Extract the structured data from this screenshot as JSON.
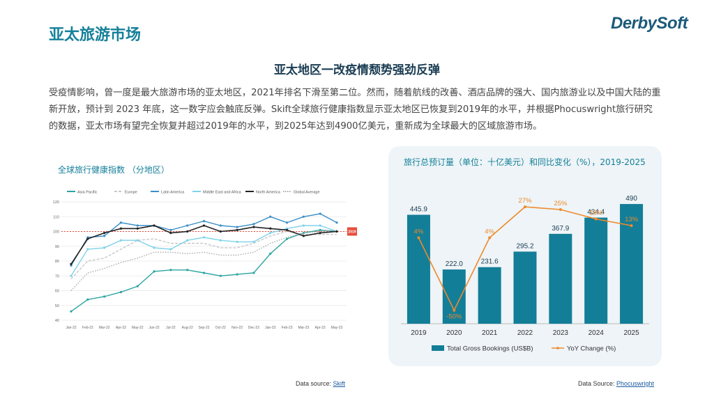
{
  "header": {
    "title": "亚太旅游市场",
    "logo_text": "DerbySoft",
    "brand_color": "#15809a"
  },
  "subtitle": "亚太地区一改疫情颓势强劲反弹",
  "body_text": "受疫情影响，曾一度是最大旅游市场的亚太地区，2021年排名下滑至第二位。然而，随着航线的改善、酒店品牌的强大、国内旅游业以及中国大陆的重新开放，预计到 2023 年底，这一数字应会触底反弹。Skift全球旅行健康指数显示亚太地区已恢复到2019年的水平，并根据Phocuswright旅行研究的数据，亚太市场有望完全恢复并超过2019年的水平，到2025年达到4900亿美元，重新成为全球最大的区域旅游市场。",
  "left_chart_title": "全球旅行健康指数 （分地区）",
  "right_chart_title": "旅行总预订量（单位：十亿美元）和同比变化（%），2019-2025",
  "sources": {
    "left_label": "Data source: ",
    "left_link": "Skift",
    "right_label": "Data Source: ",
    "right_link": "Phocuswright"
  },
  "chart_data": [
    {
      "type": "line",
      "title": "全球旅行健康指数 （分地区）",
      "x": [
        "Jan-22",
        "Feb-22",
        "Mar-22",
        "Apr-22",
        "May-22",
        "Jun-22",
        "Jul-22",
        "Aug-22",
        "Sep-22",
        "Oct-22",
        "Nov-22",
        "Dec-22",
        "Jan-23",
        "Feb-23",
        "Mar-23",
        "Apr-23",
        "May-23"
      ],
      "ylim": [
        40,
        120
      ],
      "yticks": [
        40,
        50,
        60,
        70,
        80,
        90,
        100,
        110,
        120
      ],
      "grid": true,
      "legend_position": "top",
      "reference_line": {
        "value": 100,
        "label": "2019",
        "color": "#e74c3c"
      },
      "series": [
        {
          "name": "Asia Pacific",
          "color": "#2aa5a0",
          "dash": "solid",
          "values": [
            46,
            54,
            56,
            59,
            63,
            73,
            74,
            74,
            72,
            70,
            71,
            72,
            85,
            95,
            99,
            101,
            100
          ]
        },
        {
          "name": "Europe",
          "color": "#c8c8c8",
          "dash": "dashed",
          "values": [
            68,
            80,
            82,
            88,
            94,
            95,
            92,
            92,
            92,
            89,
            89,
            92,
            97,
            100,
            98,
            98,
            98
          ]
        },
        {
          "name": "Latin America",
          "color": "#3a8fc7",
          "dash": "solid",
          "values": [
            77,
            96,
            97,
            106,
            104,
            104,
            101,
            104,
            107,
            104,
            103,
            105,
            110,
            106,
            110,
            112,
            106
          ]
        },
        {
          "name": "Middle East and Africa",
          "color": "#7fd3e8",
          "dash": "solid",
          "values": [
            70,
            88,
            89,
            94,
            94,
            89,
            88,
            94,
            96,
            94,
            93,
            93,
            99,
            102,
            104,
            104,
            100
          ]
        },
        {
          "name": "North America",
          "color": "#222222",
          "dash": "solid",
          "values": [
            78,
            95,
            99,
            102,
            102,
            104,
            99,
            100,
            104,
            100,
            101,
            103,
            102,
            101,
            97,
            99,
            100
          ]
        },
        {
          "name": "Global Average",
          "color": "#aaaaaa",
          "dash": "dotted",
          "values": [
            60,
            72,
            75,
            79,
            82,
            86,
            86,
            85,
            86,
            84,
            84,
            86,
            92,
            96,
            99,
            100,
            101
          ]
        }
      ]
    },
    {
      "type": "bar",
      "title": "旅行总预订量（单位：十亿美元）和同比变化（%），2019-2025",
      "categories": [
        "2019",
        "2020",
        "2021",
        "2022",
        "2023",
        "2024",
        "2025"
      ],
      "series": [
        {
          "name": "Total Gross Bookings (US$B)",
          "kind": "bar",
          "color": "#137e98",
          "values": [
            445.9,
            222.0,
            231.6,
            295.2,
            367.9,
            434.4,
            490
          ],
          "labels": [
            "445.9",
            "222.0",
            "231.6",
            "295.2",
            "367.9",
            "434.4",
            "490"
          ]
        },
        {
          "name": "YoY Change (%)",
          "kind": "line",
          "color": "#ee8a2c",
          "axis": "secondary",
          "values": [
            4,
            -50,
            4,
            27,
            25,
            18,
            13
          ],
          "labels": [
            "4%",
            "-50%",
            "4%",
            "27%",
            "25%",
            "18%",
            "13%"
          ]
        }
      ],
      "ylim": [
        0,
        550
      ],
      "y2lim": [
        -60,
        40
      ],
      "legend_position": "bottom"
    }
  ]
}
